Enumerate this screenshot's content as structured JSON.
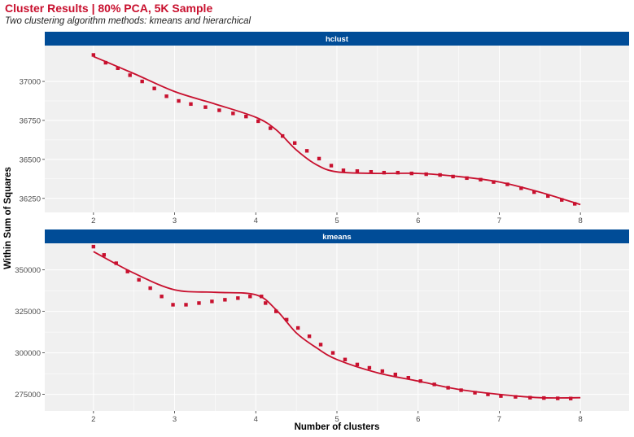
{
  "title": "Cluster Results | 80% PCA, 5K Sample",
  "subtitle": "Two clustering algorithm methods: kmeans and hierarchical",
  "colors": {
    "accent": "#c8102e",
    "strip": "#004c97",
    "panel_bg": "#f0f0f0",
    "grid": "#ffffff"
  },
  "chart_data": {
    "type": "line",
    "xlabel": "Number of clusters",
    "ylabel": "Within Sum of Squares",
    "panels": [
      {
        "strip_label": "hclust",
        "xlim": [
          1.4,
          8.6
        ],
        "ylim": [
          36160,
          37230
        ],
        "x_ticks": [
          2,
          3,
          4,
          5,
          6,
          7,
          8
        ],
        "y_ticks": [
          36250,
          36500,
          36750,
          37000
        ],
        "y_tick_labels": [
          "36250",
          "36500",
          "36750",
          "37000"
        ],
        "points": [
          [
            2.0,
            37170
          ],
          [
            2.15,
            37120
          ],
          [
            2.3,
            37085
          ],
          [
            2.45,
            37040
          ],
          [
            2.6,
            37000
          ],
          [
            2.75,
            36955
          ],
          [
            2.9,
            36905
          ],
          [
            3.05,
            36875
          ],
          [
            3.2,
            36855
          ],
          [
            3.38,
            36835
          ],
          [
            3.55,
            36815
          ],
          [
            3.72,
            36795
          ],
          [
            3.88,
            36775
          ],
          [
            4.03,
            36745
          ],
          [
            4.18,
            36700
          ],
          [
            4.33,
            36650
          ],
          [
            4.48,
            36605
          ],
          [
            4.63,
            36555
          ],
          [
            4.78,
            36505
          ],
          [
            4.93,
            36460
          ],
          [
            5.08,
            36430
          ],
          [
            5.25,
            36425
          ],
          [
            5.42,
            36420
          ],
          [
            5.58,
            36415
          ],
          [
            5.75,
            36415
          ],
          [
            5.92,
            36410
          ],
          [
            6.1,
            36405
          ],
          [
            6.27,
            36400
          ],
          [
            6.43,
            36390
          ],
          [
            6.6,
            36380
          ],
          [
            6.77,
            36370
          ],
          [
            6.93,
            36355
          ],
          [
            7.1,
            36340
          ],
          [
            7.27,
            36315
          ],
          [
            7.43,
            36290
          ],
          [
            7.6,
            36265
          ],
          [
            7.77,
            36240
          ],
          [
            7.93,
            36215
          ]
        ],
        "smooth": [
          [
            2.0,
            37160
          ],
          [
            2.5,
            37050
          ],
          [
            3.0,
            36935
          ],
          [
            3.5,
            36855
          ],
          [
            4.0,
            36770
          ],
          [
            4.25,
            36690
          ],
          [
            4.5,
            36560
          ],
          [
            4.75,
            36465
          ],
          [
            5.0,
            36420
          ],
          [
            5.5,
            36410
          ],
          [
            6.0,
            36410
          ],
          [
            6.5,
            36390
          ],
          [
            7.0,
            36355
          ],
          [
            7.5,
            36290
          ],
          [
            8.0,
            36210
          ]
        ]
      },
      {
        "strip_label": "kmeans",
        "xlim": [
          1.4,
          8.6
        ],
        "ylim": [
          265000,
          366000
        ],
        "x_ticks": [
          2,
          3,
          4,
          5,
          6,
          7,
          8
        ],
        "y_ticks": [
          275000,
          300000,
          325000,
          350000
        ],
        "y_tick_labels": [
          "275000",
          "300000",
          "325000",
          "350000"
        ],
        "points": [
          [
            2.0,
            364000
          ],
          [
            2.13,
            359000
          ],
          [
            2.28,
            354000
          ],
          [
            2.42,
            349000
          ],
          [
            2.56,
            344000
          ],
          [
            2.7,
            339000
          ],
          [
            2.84,
            334000
          ],
          [
            2.98,
            329000
          ],
          [
            3.14,
            329000
          ],
          [
            3.3,
            330000
          ],
          [
            3.46,
            331000
          ],
          [
            3.62,
            332000
          ],
          [
            3.78,
            333000
          ],
          [
            3.93,
            334000
          ],
          [
            4.07,
            334000
          ],
          [
            4.12,
            330000
          ],
          [
            4.25,
            325000
          ],
          [
            4.38,
            320000
          ],
          [
            4.52,
            315000
          ],
          [
            4.66,
            310000
          ],
          [
            4.8,
            305000
          ],
          [
            4.95,
            300000
          ],
          [
            5.1,
            296000
          ],
          [
            5.25,
            293000
          ],
          [
            5.4,
            291000
          ],
          [
            5.56,
            289000
          ],
          [
            5.72,
            287000
          ],
          [
            5.88,
            285000
          ],
          [
            6.03,
            283000
          ],
          [
            6.2,
            281000
          ],
          [
            6.37,
            279000
          ],
          [
            6.53,
            277500
          ],
          [
            6.7,
            276000
          ],
          [
            6.86,
            275000
          ],
          [
            7.02,
            274000
          ],
          [
            7.2,
            273500
          ],
          [
            7.38,
            273000
          ],
          [
            7.55,
            272800
          ],
          [
            7.72,
            272600
          ],
          [
            7.88,
            272500
          ]
        ],
        "smooth": [
          [
            2.0,
            361000
          ],
          [
            2.5,
            348000
          ],
          [
            3.0,
            338000
          ],
          [
            3.5,
            336500
          ],
          [
            4.0,
            335000
          ],
          [
            4.25,
            326000
          ],
          [
            4.5,
            312000
          ],
          [
            4.75,
            303000
          ],
          [
            5.0,
            296000
          ],
          [
            5.5,
            288000
          ],
          [
            6.0,
            283000
          ],
          [
            6.5,
            278000
          ],
          [
            7.0,
            275000
          ],
          [
            7.5,
            273000
          ],
          [
            8.0,
            273000
          ]
        ]
      }
    ]
  }
}
